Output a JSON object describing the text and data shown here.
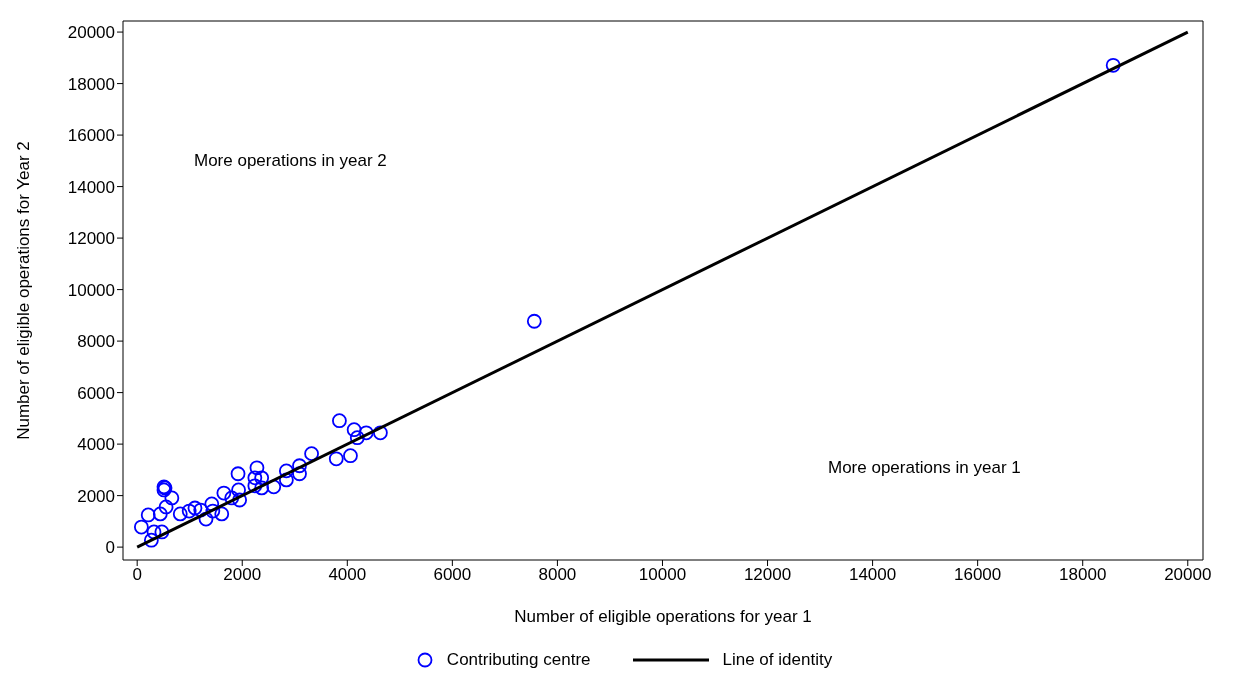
{
  "chart_data": {
    "type": "scatter",
    "xlabel": "Number of eligible operations for year 1",
    "ylabel": "Number of eligible operations for Year 2",
    "xlim": [
      -270,
      20290
    ],
    "ylim": [
      -500,
      20430
    ],
    "xticks": [
      0,
      2000,
      4000,
      6000,
      8000,
      10000,
      12000,
      14000,
      16000,
      18000,
      20000
    ],
    "yticks": [
      0,
      2000,
      4000,
      6000,
      8000,
      10000,
      12000,
      14000,
      16000,
      18000,
      20000
    ],
    "legend": "bottom",
    "marker": "circle",
    "annotations": [
      "More operations in year 2",
      "More operations in year 1"
    ],
    "series": [
      {
        "name": "Contributing centre",
        "color": "#0000ff",
        "x": [
          80,
          210,
          270,
          320,
          470,
          440,
          550,
          660,
          510,
          510,
          530,
          820,
          990,
          1100,
          1210,
          1310,
          1420,
          1440,
          1610,
          1650,
          1800,
          1930,
          1950,
          1920,
          2240,
          2280,
          2370,
          2240,
          2370,
          2600,
          2840,
          2840,
          3090,
          3090,
          3320,
          3790,
          4060,
          3850,
          4130,
          4190,
          4360,
          4630,
          7560,
          18580
        ],
        "values": [
          780,
          1250,
          270,
          590,
          590,
          1290,
          1560,
          1910,
          2340,
          2220,
          2300,
          1290,
          1400,
          1520,
          1440,
          1090,
          1680,
          1400,
          1290,
          2100,
          1910,
          2220,
          1830,
          2850,
          2690,
          3080,
          2690,
          2380,
          2300,
          2340,
          2960,
          2610,
          3160,
          2850,
          3630,
          3430,
          3550,
          4910,
          4560,
          4250,
          4440,
          4440,
          8770,
          18710
        ]
      },
      {
        "name": "Line of identity",
        "type": "line",
        "color": "#000000",
        "line_style": "solid",
        "marker": "none",
        "x": [
          0,
          20000
        ],
        "values": [
          0,
          20000
        ]
      }
    ]
  }
}
